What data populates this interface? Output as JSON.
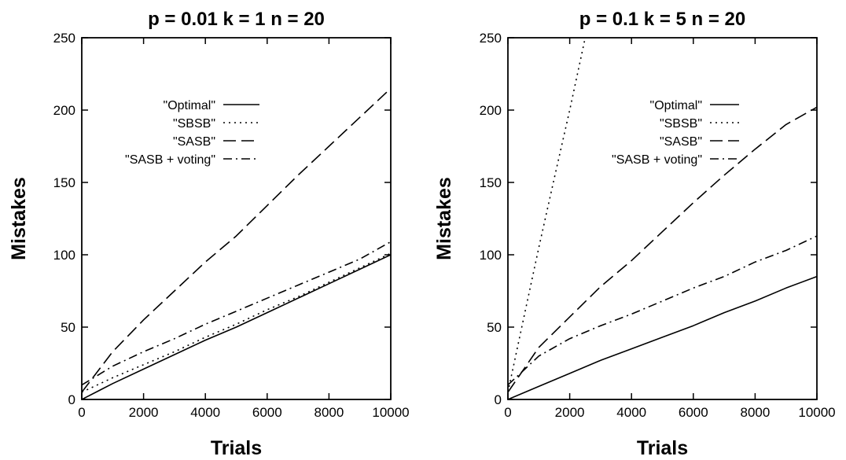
{
  "chart_data": [
    {
      "type": "line",
      "title": "p = 0.01  k = 1  n = 20",
      "xlabel": "Trials",
      "ylabel": "Mistakes",
      "xlim": [
        0,
        10000
      ],
      "ylim": [
        0,
        250
      ],
      "xticks": [
        "0",
        "2000",
        "4000",
        "6000",
        "8000",
        "10000"
      ],
      "yticks": [
        "0",
        "50",
        "100",
        "150",
        "200",
        "250"
      ],
      "legend_position": "upper-middle",
      "grid": false,
      "series": [
        {
          "name": "\"Optimal\"",
          "style": "solid",
          "x": [
            0,
            1000,
            2000,
            3000,
            4000,
            5000,
            6000,
            7000,
            8000,
            9000,
            10000
          ],
          "y": [
            0,
            11,
            21,
            31,
            41,
            50,
            60,
            70,
            80,
            90,
            100
          ]
        },
        {
          "name": "\"SBSB\"",
          "style": "dotted",
          "x": [
            0,
            1000,
            2000,
            3000,
            4000,
            5000,
            6000,
            7000,
            8000,
            9000,
            10000
          ],
          "y": [
            5,
            15,
            24,
            33,
            43,
            52,
            62,
            71,
            81,
            91,
            101
          ]
        },
        {
          "name": "\"SASB\"",
          "style": "dashed",
          "x": [
            0,
            1000,
            2000,
            3000,
            4000,
            5000,
            6000,
            7000,
            8000,
            9000,
            10000
          ],
          "y": [
            5,
            33,
            55,
            75,
            95,
            113,
            134,
            155,
            175,
            195,
            215
          ]
        },
        {
          "name": "\"SASB + voting\"",
          "style": "dashdot",
          "x": [
            0,
            1000,
            2000,
            3000,
            4000,
            5000,
            6000,
            7000,
            8000,
            9000,
            10000
          ],
          "y": [
            10,
            23,
            33,
            42,
            52,
            61,
            70,
            79,
            88,
            97,
            109
          ]
        }
      ]
    },
    {
      "type": "line",
      "title": "p = 0.1  k = 5  n = 20",
      "xlabel": "Trials",
      "ylabel": "Mistakes",
      "xlim": [
        0,
        10000
      ],
      "ylim": [
        0,
        250
      ],
      "xticks": [
        "0",
        "2000",
        "4000",
        "6000",
        "8000",
        "10000"
      ],
      "yticks": [
        "0",
        "50",
        "100",
        "150",
        "200",
        "250"
      ],
      "legend_position": "upper-middle",
      "grid": false,
      "series": [
        {
          "name": "\"Optimal\"",
          "style": "solid",
          "x": [
            0,
            1000,
            2000,
            3000,
            4000,
            5000,
            6000,
            7000,
            8000,
            9000,
            10000
          ],
          "y": [
            0,
            9,
            18,
            27,
            35,
            43,
            51,
            60,
            68,
            77,
            85
          ]
        },
        {
          "name": "\"SBSB\"",
          "style": "dotted",
          "x": [
            0,
            500,
            1000,
            1500,
            2000,
            2500
          ],
          "y": [
            5,
            55,
            105,
            153,
            200,
            250
          ]
        },
        {
          "name": "\"SASB\"",
          "style": "dashed",
          "x": [
            0,
            1000,
            2000,
            3000,
            4000,
            5000,
            6000,
            7000,
            8000,
            9000,
            10000
          ],
          "y": [
            5,
            36,
            57,
            78,
            96,
            116,
            136,
            155,
            173,
            190,
            202
          ]
        },
        {
          "name": "\"SASB + voting\"",
          "style": "dashdot",
          "x": [
            0,
            1000,
            2000,
            3000,
            4000,
            5000,
            6000,
            7000,
            8000,
            9000,
            10000
          ],
          "y": [
            10,
            30,
            42,
            51,
            59,
            68,
            77,
            85,
            95,
            103,
            113
          ]
        }
      ]
    }
  ]
}
